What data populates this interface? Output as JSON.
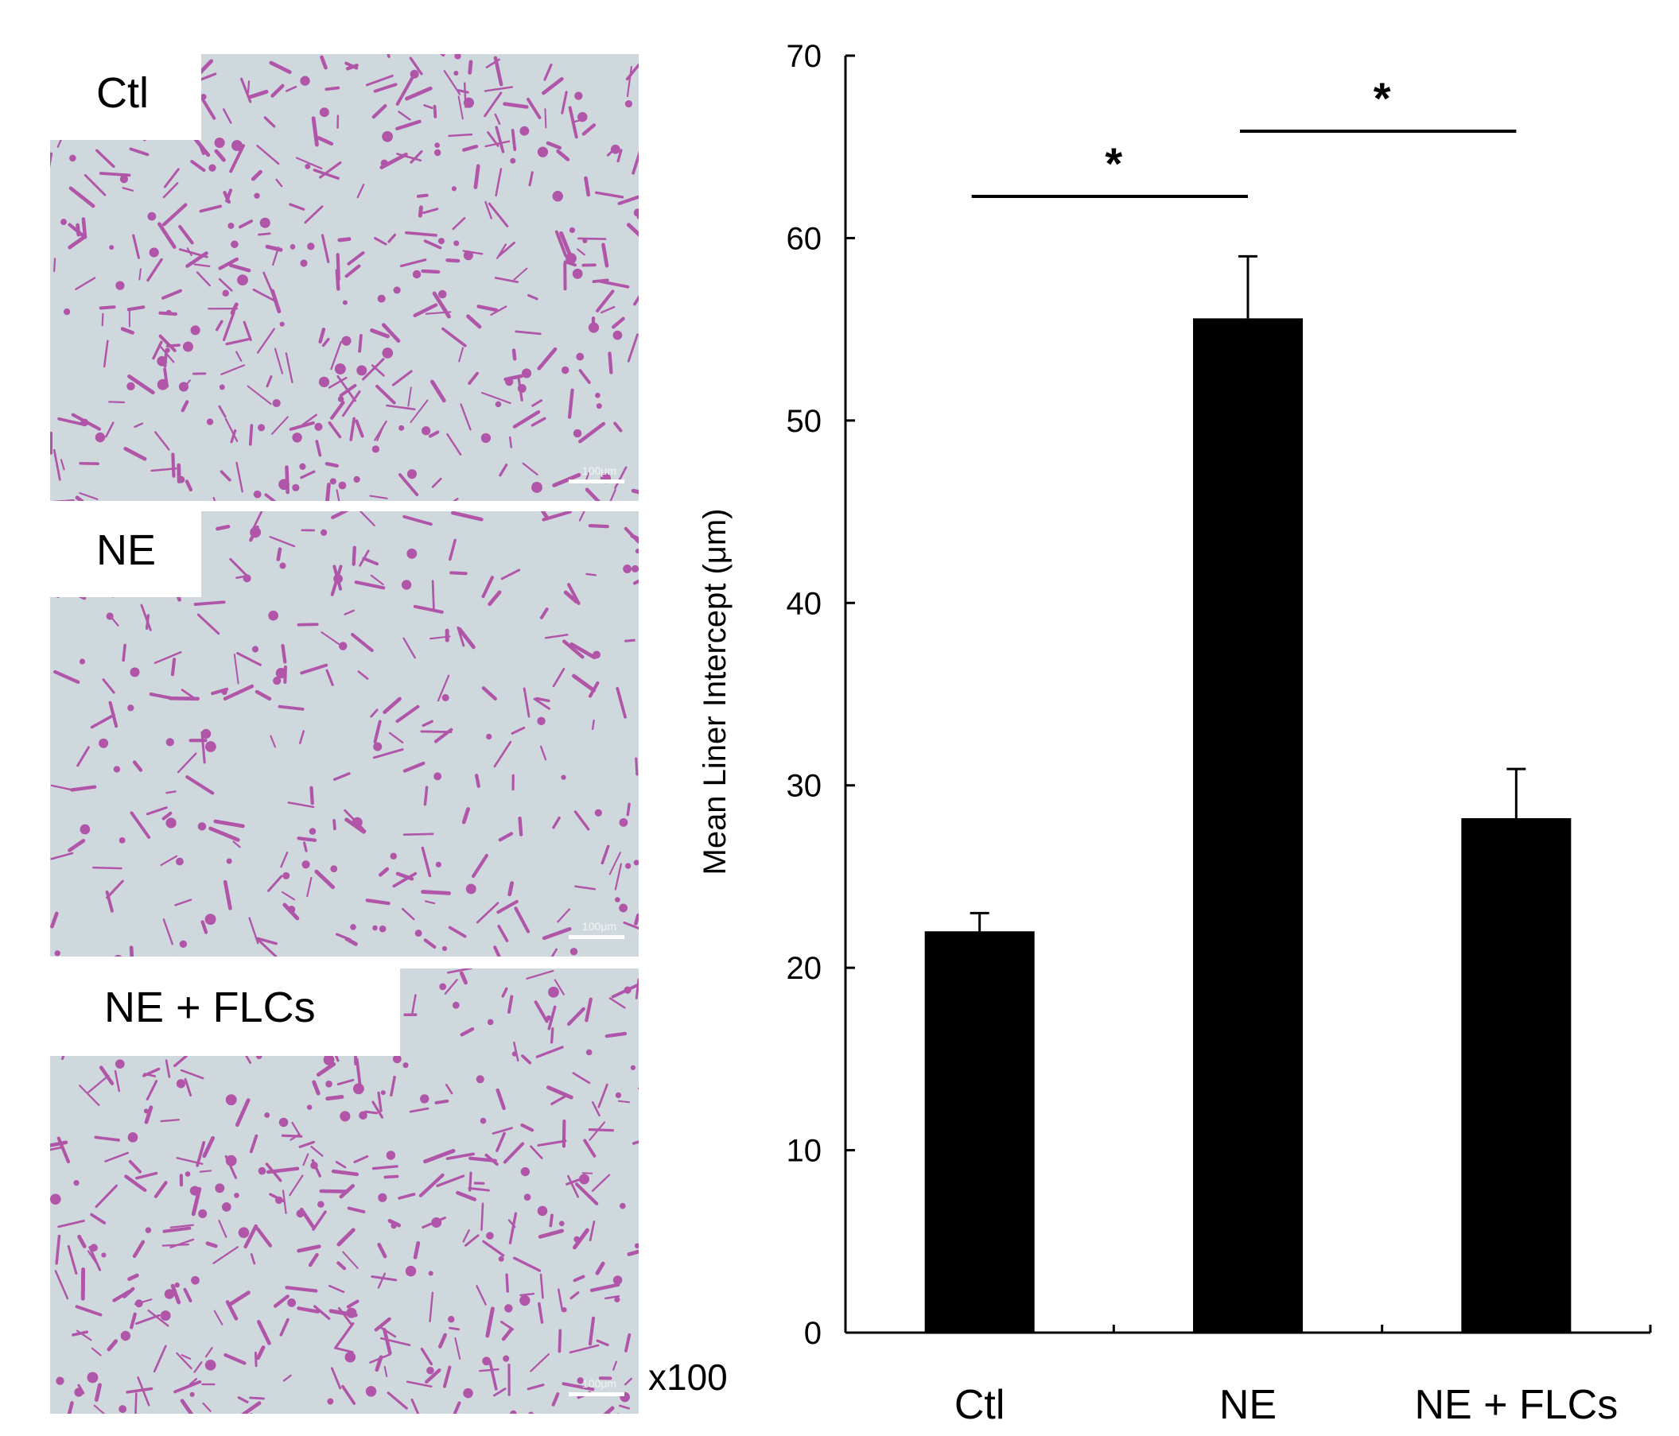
{
  "micrographs": [
    {
      "label": "Ctl",
      "scale": "100μm"
    },
    {
      "label": "NE",
      "scale": "100μm"
    },
    {
      "label": "NE + FLCs",
      "scale": "100μm"
    }
  ],
  "magnification": "x100",
  "colors": {
    "bar": "#000000",
    "tissue": "#b055a8",
    "background": "#cfd9dd"
  },
  "chart_data": {
    "type": "bar",
    "title": "",
    "xlabel": "",
    "ylabel": "Mean Liner Intercept (μm)",
    "categories": [
      "Ctl",
      "NE",
      "NE + FLCs"
    ],
    "values": [
      22.0,
      55.6,
      28.2
    ],
    "errors": [
      1.0,
      3.4,
      2.7
    ],
    "ylim": [
      0,
      70
    ],
    "yticks": [
      0,
      10,
      20,
      30,
      40,
      50,
      60,
      70
    ],
    "significance": [
      {
        "from": "Ctl",
        "to": "NE",
        "label": "*"
      },
      {
        "from": "NE",
        "to": "NE + FLCs",
        "label": "*"
      }
    ],
    "grid": false
  }
}
